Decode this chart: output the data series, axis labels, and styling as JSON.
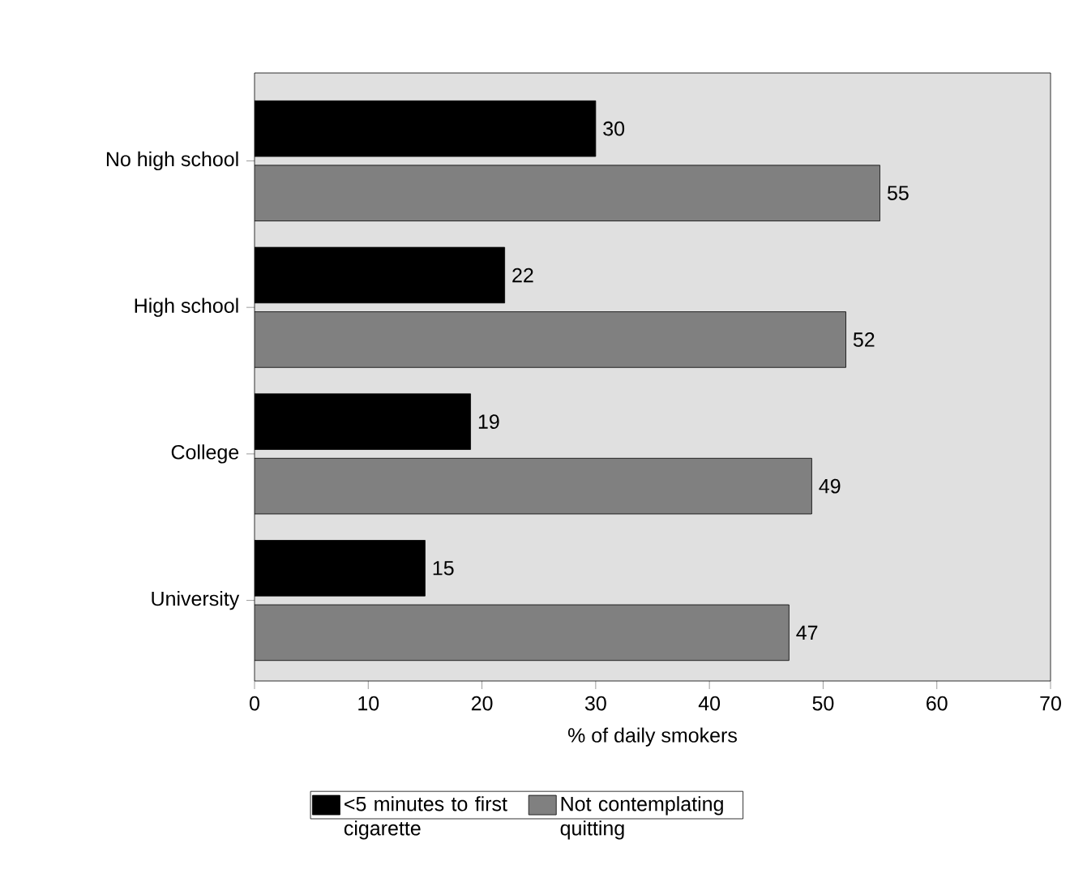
{
  "chart_data": {
    "type": "bar",
    "orientation": "horizontal",
    "categories": [
      "No high school",
      "High school",
      "College",
      "University"
    ],
    "series": [
      {
        "name": "<5 minutes to first cigarette",
        "color": "#000000",
        "values": [
          30,
          22,
          19,
          15
        ]
      },
      {
        "name": "Not contemplating quitting",
        "color": "#808080",
        "values": [
          55,
          52,
          49,
          47
        ]
      }
    ],
    "xlabel": "% of daily smokers",
    "xlim": [
      0,
      70
    ],
    "xticks": [
      0,
      10,
      20,
      30,
      40,
      50,
      60,
      70
    ],
    "data_labels": true,
    "legend": "bottom"
  }
}
